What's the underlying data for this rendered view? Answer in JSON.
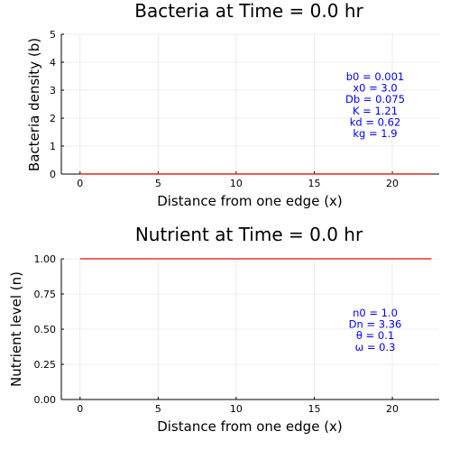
{
  "colors": {
    "series": "#e0392b",
    "annotation": "#0000ff",
    "grid": "#e6e6e6"
  },
  "chart_data": [
    {
      "type": "line",
      "title": "Bacteria at Time = 0.0 hr",
      "xlabel": "Distance from one edge (x)",
      "ylabel": "Bacteria density (b)",
      "xlim": [
        -1.2,
        23
      ],
      "ylim": [
        0,
        5
      ],
      "xticks": [
        0,
        5,
        10,
        15,
        20
      ],
      "yticks": [
        0,
        1,
        2,
        3,
        4,
        5
      ],
      "xtick_labels": [
        "0",
        "5",
        "10",
        "15",
        "20"
      ],
      "ytick_labels": [
        "0",
        "1",
        "2",
        "3",
        "4",
        "5"
      ],
      "grid": true,
      "series": [
        {
          "x": [
            0,
            22.5
          ],
          "y": [
            0.001,
            0.001
          ]
        }
      ],
      "annotations": [
        "b0 = 0.001",
        "x0 = 3.0",
        "Db = 0.075",
        "K = 1.21",
        "kd = 0.62",
        "kg = 1.9"
      ]
    },
    {
      "type": "line",
      "title": "Nutrient at Time = 0.0 hr",
      "xlabel": "Distance from one edge (x)",
      "ylabel": "Nutrient level (n)",
      "xlim": [
        -1.2,
        23
      ],
      "ylim": [
        0,
        1
      ],
      "xticks": [
        0,
        5,
        10,
        15,
        20
      ],
      "yticks": [
        0,
        0.25,
        0.5,
        0.75,
        1.0
      ],
      "xtick_labels": [
        "0",
        "5",
        "10",
        "15",
        "20"
      ],
      "ytick_labels": [
        "0.00",
        "0.25",
        "0.50",
        "0.75",
        "1.00"
      ],
      "grid": true,
      "series": [
        {
          "x": [
            0,
            22.5
          ],
          "y": [
            1.0,
            1.0
          ]
        }
      ],
      "annotations": [
        "n0 = 1.0",
        "Dn = 3.36",
        "θ = 0.1",
        "ω = 0.3"
      ]
    }
  ]
}
